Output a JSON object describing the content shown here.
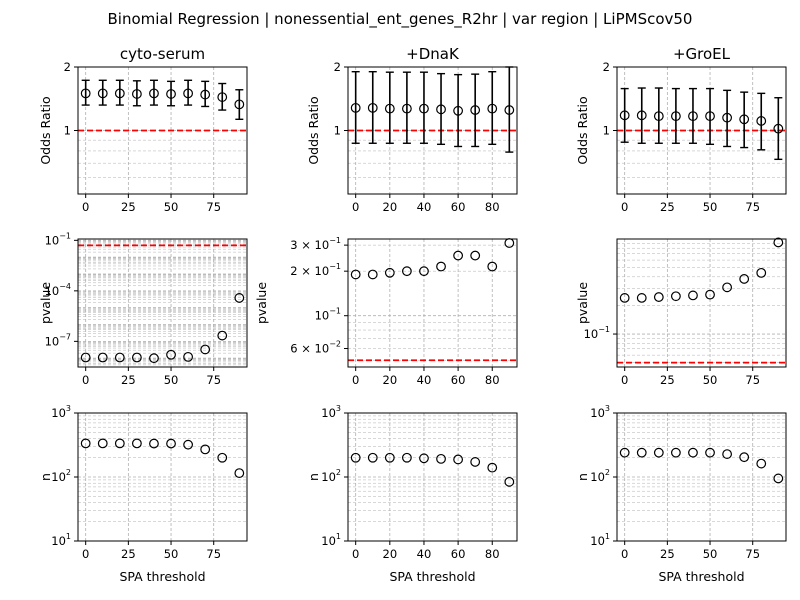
{
  "figure": {
    "suptitle": "Binomial Regression | nonessential_ent_genes_R2hr | var region | LiPMScov50"
  },
  "chart_data": [
    {
      "type": "scatter",
      "panel": "odds_ratio",
      "column_title": "cyto-serum",
      "xlabel": "",
      "ylabel": "Odds Ratio",
      "yscale": "log",
      "ylim": [
        0.5,
        2
      ],
      "xlim": [
        -4.5,
        94.5
      ],
      "y_ticks": [
        {
          "value": 1,
          "label": "1"
        },
        {
          "value": 2,
          "label": "2"
        }
      ],
      "x_ticks": [
        0,
        25,
        50,
        75
      ],
      "reference_line": {
        "y": 1,
        "style": "red dashed"
      },
      "grid": true,
      "x": [
        0,
        10,
        20,
        30,
        40,
        50,
        60,
        70,
        80,
        90
      ],
      "y": [
        1.5,
        1.5,
        1.5,
        1.49,
        1.5,
        1.49,
        1.5,
        1.48,
        1.44,
        1.33
      ],
      "y_err_low": [
        1.32,
        1.32,
        1.32,
        1.31,
        1.32,
        1.31,
        1.32,
        1.3,
        1.25,
        1.13
      ],
      "y_err_high": [
        1.73,
        1.73,
        1.73,
        1.72,
        1.73,
        1.71,
        1.73,
        1.71,
        1.67,
        1.56
      ]
    },
    {
      "type": "scatter",
      "panel": "odds_ratio",
      "column_title": "+DnaK",
      "xlabel": "",
      "ylabel": "Odds Ratio",
      "yscale": "log",
      "ylim": [
        0.5,
        2
      ],
      "xlim": [
        -4.5,
        94.5
      ],
      "y_ticks": [
        {
          "value": 1,
          "label": "1"
        },
        {
          "value": 2,
          "label": "2"
        }
      ],
      "x_ticks": [
        0,
        20,
        40,
        60,
        80
      ],
      "reference_line": {
        "y": 1,
        "style": "red dashed"
      },
      "grid": true,
      "x": [
        0,
        10,
        20,
        30,
        40,
        50,
        60,
        70,
        80,
        90
      ],
      "y": [
        1.28,
        1.28,
        1.27,
        1.27,
        1.27,
        1.26,
        1.24,
        1.25,
        1.27,
        1.25
      ],
      "y_err_low": [
        0.87,
        0.87,
        0.87,
        0.87,
        0.87,
        0.86,
        0.84,
        0.84,
        0.86,
        0.79
      ],
      "y_err_high": [
        1.9,
        1.9,
        1.89,
        1.89,
        1.89,
        1.86,
        1.84,
        1.85,
        1.9,
        2.0
      ]
    },
    {
      "type": "scatter",
      "panel": "odds_ratio",
      "column_title": "+GroEL",
      "xlabel": "",
      "ylabel": "Odds Ratio",
      "yscale": "log",
      "ylim": [
        0.5,
        2
      ],
      "xlim": [
        -4.5,
        94.5
      ],
      "y_ticks": [
        {
          "value": 1,
          "label": "1"
        },
        {
          "value": 2,
          "label": "2"
        }
      ],
      "x_ticks": [
        0,
        25,
        50,
        75
      ],
      "reference_line": {
        "y": 1,
        "style": "red dashed"
      },
      "grid": true,
      "x": [
        0,
        10,
        20,
        30,
        40,
        50,
        60,
        70,
        80,
        90
      ],
      "y": [
        1.18,
        1.18,
        1.17,
        1.17,
        1.17,
        1.17,
        1.15,
        1.13,
        1.11,
        1.02
      ],
      "y_err_low": [
        0.88,
        0.87,
        0.87,
        0.87,
        0.87,
        0.86,
        0.84,
        0.83,
        0.81,
        0.73
      ],
      "y_err_high": [
        1.58,
        1.59,
        1.59,
        1.58,
        1.58,
        1.58,
        1.55,
        1.52,
        1.5,
        1.43
      ]
    },
    {
      "type": "scatter",
      "panel": "pvalue",
      "column_title": "",
      "xlabel": "",
      "ylabel": "pvalue",
      "yscale": "log",
      "ylim": [
        3e-09,
        0.12
      ],
      "xlim": [
        -4.5,
        94.5
      ],
      "y_ticks": [
        {
          "value": 1e-07,
          "label": "10",
          "exp": "−7"
        },
        {
          "value": 0.0001,
          "label": "10",
          "exp": "−4"
        },
        {
          "value": 0.1,
          "label": "10",
          "exp": "−1"
        }
      ],
      "x_ticks": [
        0,
        25,
        50,
        75
      ],
      "reference_line": {
        "y": 0.05,
        "style": "red dashed"
      },
      "grid": true,
      "x": [
        0,
        10,
        20,
        30,
        40,
        50,
        60,
        70,
        80,
        90
      ],
      "y": [
        1.1e-08,
        1.1e-08,
        1.1e-08,
        1.1e-08,
        1e-08,
        1.6e-08,
        1.2e-08,
        3.3e-08,
        2.2e-07,
        3.8e-05
      ]
    },
    {
      "type": "scatter",
      "panel": "pvalue",
      "column_title": "",
      "xlabel": "",
      "ylabel": "pvalue",
      "yscale": "log",
      "ylim": [
        0.045,
        0.33
      ],
      "xlim": [
        -4.5,
        94.5
      ],
      "y_ticks": [
        {
          "value": 0.06,
          "label": "6 × 10",
          "exp": "−2"
        },
        {
          "value": 0.1,
          "label": "10",
          "exp": "−1"
        },
        {
          "value": 0.2,
          "label": "2 × 10",
          "exp": "−1"
        },
        {
          "value": 0.3,
          "label": "3 × 10",
          "exp": "−1"
        }
      ],
      "x_ticks": [
        0,
        20,
        40,
        60,
        80
      ],
      "reference_line": {
        "y": 0.05,
        "style": "red dashed"
      },
      "grid": true,
      "x": [
        0,
        10,
        20,
        30,
        40,
        50,
        60,
        70,
        80,
        90
      ],
      "y": [
        0.19,
        0.19,
        0.195,
        0.2,
        0.2,
        0.215,
        0.255,
        0.255,
        0.215,
        0.31
      ]
    },
    {
      "type": "scatter",
      "panel": "pvalue",
      "column_title": "",
      "xlabel": "",
      "ylabel": "pvalue",
      "yscale": "log",
      "ylim": [
        0.045,
        1.0
      ],
      "xlim": [
        -4.5,
        94.5
      ],
      "y_ticks": [
        {
          "value": 0.1,
          "label": "10",
          "exp": "−1"
        }
      ],
      "x_ticks": [
        0,
        25,
        50,
        75
      ],
      "reference_line": {
        "y": 0.05,
        "style": "red dashed"
      },
      "grid": true,
      "x": [
        0,
        10,
        20,
        30,
        40,
        50,
        60,
        70,
        80,
        90
      ],
      "y": [
        0.24,
        0.24,
        0.245,
        0.25,
        0.255,
        0.26,
        0.31,
        0.38,
        0.44,
        0.92
      ]
    },
    {
      "type": "scatter",
      "panel": "n",
      "column_title": "",
      "xlabel": "SPA threshold",
      "ylabel": "n",
      "yscale": "log",
      "ylim": [
        10,
        1000
      ],
      "xlim": [
        -4.5,
        94.5
      ],
      "y_ticks": [
        {
          "value": 10,
          "label": "10",
          "exp": "1"
        },
        {
          "value": 100,
          "label": "10",
          "exp": "2"
        },
        {
          "value": 1000,
          "label": "10",
          "exp": "3"
        }
      ],
      "x_ticks": [
        0,
        25,
        50,
        75
      ],
      "grid": true,
      "x": [
        0,
        10,
        20,
        30,
        40,
        50,
        60,
        70,
        80,
        90
      ],
      "y": [
        335,
        335,
        335,
        335,
        333,
        333,
        320,
        270,
        200,
        115
      ]
    },
    {
      "type": "scatter",
      "panel": "n",
      "column_title": "",
      "xlabel": "SPA threshold",
      "ylabel": "n",
      "yscale": "log",
      "ylim": [
        10,
        1000
      ],
      "xlim": [
        -4.5,
        94.5
      ],
      "y_ticks": [
        {
          "value": 10,
          "label": "10",
          "exp": "1"
        },
        {
          "value": 100,
          "label": "10",
          "exp": "2"
        },
        {
          "value": 1000,
          "label": "10",
          "exp": "3"
        }
      ],
      "x_ticks": [
        0,
        20,
        40,
        60,
        80
      ],
      "grid": true,
      "x": [
        0,
        10,
        20,
        30,
        40,
        50,
        60,
        70,
        80,
        90
      ],
      "y": [
        200,
        200,
        200,
        200,
        196,
        192,
        188,
        172,
        140,
        84
      ]
    },
    {
      "type": "scatter",
      "panel": "n",
      "column_title": "",
      "xlabel": "SPA threshold",
      "ylabel": "n",
      "yscale": "log",
      "ylim": [
        10,
        1000
      ],
      "xlim": [
        -4.5,
        94.5
      ],
      "y_ticks": [
        {
          "value": 10,
          "label": "10",
          "exp": "1"
        },
        {
          "value": 100,
          "label": "10",
          "exp": "2"
        },
        {
          "value": 1000,
          "label": "10",
          "exp": "3"
        }
      ],
      "x_ticks": [
        0,
        25,
        50,
        75
      ],
      "grid": true,
      "x": [
        0,
        10,
        20,
        30,
        40,
        50,
        60,
        70,
        80,
        90
      ],
      "y": [
        240,
        240,
        240,
        240,
        240,
        240,
        228,
        204,
        162,
        95
      ]
    }
  ]
}
